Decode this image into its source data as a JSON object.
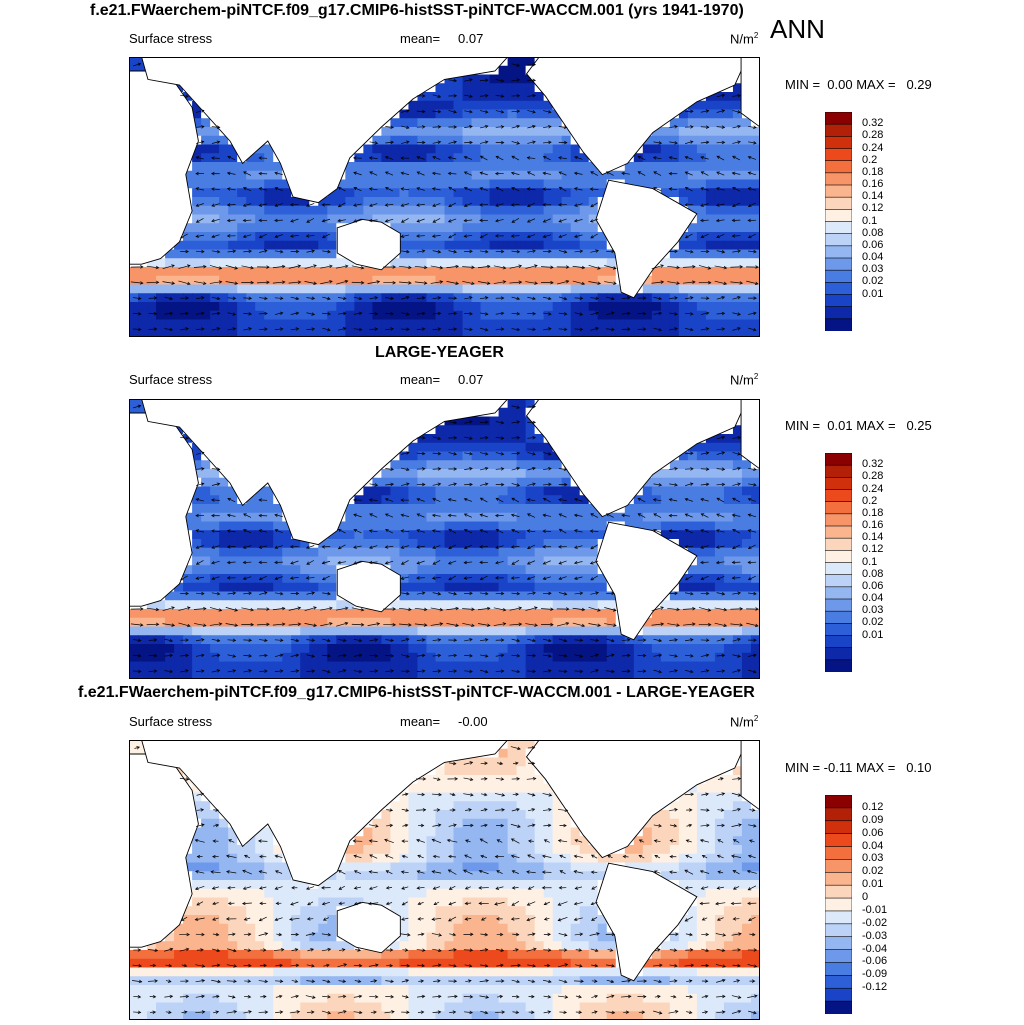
{
  "header": {
    "main_title": "f.e21.FWaerchem-piNTCF.f09_g17.CMIP6-histSST-piNTCF-WACCM.001 (yrs 1941-1970)",
    "season": "ANN"
  },
  "panels": [
    {
      "title": "",
      "variable": "Surface stress",
      "mean_label": "mean=",
      "mean_value": "0.07",
      "units": "N/m",
      "units_sup": "2",
      "min_label": "MIN =",
      "min_value": "0.00",
      "max_label": "MAX =",
      "max_value": "0.29"
    },
    {
      "title": "LARGE-YEAGER",
      "variable": "Surface stress",
      "mean_label": "mean=",
      "mean_value": "0.07",
      "units": "N/m",
      "units_sup": "2",
      "min_label": "MIN =",
      "min_value": "0.01",
      "max_label": "MAX =",
      "max_value": "0.25"
    },
    {
      "title": "f.e21.FWaerchem-piNTCF.f09_g17.CMIP6-histSST-piNTCF-WACCM.001 - LARGE-YEAGER",
      "variable": "Surface stress",
      "mean_label": "mean=",
      "mean_value": "-0.00",
      "units": "N/m",
      "units_sup": "2",
      "min_label": "MIN =",
      "min_value": "-0.11",
      "max_label": "MAX =",
      "max_value": "0.10"
    }
  ],
  "colorbars": {
    "abs_labels": [
      "0.32",
      "0.28",
      "0.24",
      "0.2",
      "0.18",
      "0.16",
      "0.14",
      "0.12",
      "0.1",
      "0.08",
      "0.06",
      "0.04",
      "0.03",
      "0.02",
      "0.01"
    ],
    "abs_colors": [
      "#8b0000",
      "#b22008",
      "#d0300c",
      "#ec4a1c",
      "#f3703e",
      "#f79468",
      "#fab48e",
      "#fcd6bc",
      "#fff0e4",
      "#dce9fb",
      "#bcd2f7",
      "#94b6f1",
      "#6e98ea",
      "#4a7de2",
      "#2d60d8",
      "#1a44c8",
      "#0d28a8",
      "#041484"
    ],
    "diff_labels": [
      "0.12",
      "0.09",
      "0.06",
      "0.04",
      "0.03",
      "0.02",
      "0.01",
      "0",
      "-0.01",
      "-0.02",
      "-0.03",
      "-0.04",
      "-0.06",
      "-0.09",
      "-0.12"
    ],
    "diff_colors": [
      "#8b0000",
      "#b22008",
      "#d0300c",
      "#ec4a1c",
      "#f3703e",
      "#f79468",
      "#fab48e",
      "#fcd6bc",
      "#fff0e4",
      "#dce9fb",
      "#bcd2f7",
      "#94b6f1",
      "#6e98ea",
      "#4a7de2",
      "#2d60d8",
      "#1a44c8",
      "#041484"
    ]
  },
  "chart_data": [
    {
      "type": "heatmap",
      "title": "f.e21.FWaerchem-piNTCF.f09_g17.CMIP6-histSST-piNTCF-WACCM.001 (yrs 1941-1970)",
      "variable": "Surface stress",
      "units": "N/m2",
      "mean": 0.07,
      "min": 0.0,
      "max": 0.29,
      "color_levels": [
        0.01,
        0.02,
        0.03,
        0.04,
        0.06,
        0.08,
        0.1,
        0.12,
        0.14,
        0.16,
        0.18,
        0.2,
        0.24,
        0.28,
        0.32
      ]
    },
    {
      "type": "heatmap",
      "title": "LARGE-YEAGER",
      "variable": "Surface stress",
      "units": "N/m2",
      "mean": 0.07,
      "min": 0.01,
      "max": 0.25,
      "color_levels": [
        0.01,
        0.02,
        0.03,
        0.04,
        0.06,
        0.08,
        0.1,
        0.12,
        0.14,
        0.16,
        0.18,
        0.2,
        0.24,
        0.28,
        0.32
      ]
    },
    {
      "type": "heatmap",
      "title": "f.e21.FWaerchem-piNTCF.f09_g17.CMIP6-histSST-piNTCF-WACCM.001 - LARGE-YEAGER",
      "variable": "Surface stress",
      "units": "N/m2",
      "mean": -0.0,
      "min": -0.11,
      "max": 0.1,
      "color_levels": [
        -0.12,
        -0.09,
        -0.06,
        -0.04,
        -0.03,
        -0.02,
        -0.01,
        0,
        0.01,
        0.02,
        0.03,
        0.04,
        0.06,
        0.09,
        0.12
      ]
    }
  ]
}
